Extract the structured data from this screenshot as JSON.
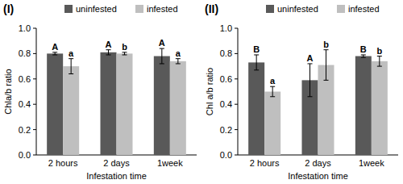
{
  "chart_data": [
    {
      "type": "bar",
      "title": "(I)",
      "x_label": "Infestation time",
      "y_label": "Chla/b ratio",
      "categories": [
        "2 hours",
        "2 days",
        "1week"
      ],
      "series": [
        {
          "name": "uninfested",
          "color": "#595959",
          "values": [
            0.8,
            0.81,
            0.78
          ],
          "errors": [
            0.01,
            0.02,
            0.06
          ],
          "letters": [
            "A",
            "A",
            "A"
          ]
        },
        {
          "name": "infested",
          "color": "#bfbfbf",
          "values": [
            0.7,
            0.8,
            0.74
          ],
          "errors": [
            0.06,
            0.01,
            0.02
          ],
          "letters": [
            "a",
            "b",
            "a"
          ]
        }
      ],
      "ylim": [
        0,
        1
      ],
      "yticks": [
        {
          "value": 0,
          "label": "0.0"
        },
        {
          "value": 0.2,
          "label": "0.2"
        },
        {
          "value": 0.4,
          "label": "0.4"
        },
        {
          "value": 0.6,
          "label": "0.6"
        },
        {
          "value": 0.8,
          "label": "0.8"
        },
        {
          "value": 1,
          "label": "1.0"
        }
      ],
      "legend": "top",
      "grid": false
    },
    {
      "type": "bar",
      "title": "(II)",
      "x_label": "Infestation time",
      "y_label": "Chl a/b ratio",
      "categories": [
        "2 hours",
        "2 days",
        "1week"
      ],
      "series": [
        {
          "name": "uninfested",
          "color": "#595959",
          "values": [
            0.73,
            0.59,
            0.78
          ],
          "errors": [
            0.06,
            0.13,
            0.01
          ],
          "letters": [
            "B",
            "A",
            "B"
          ]
        },
        {
          "name": "infested",
          "color": "#bfbfbf",
          "values": [
            0.5,
            0.71,
            0.74
          ],
          "errors": [
            0.04,
            0.12,
            0.04
          ],
          "letters": [
            "a",
            "b",
            "b"
          ]
        }
      ],
      "ylim": [
        0,
        1
      ],
      "yticks": [
        {
          "value": 0,
          "label": "0.0"
        },
        {
          "value": 0.2,
          "label": "0.2"
        },
        {
          "value": 0.4,
          "label": "0.4"
        },
        {
          "value": 0.6,
          "label": "0.6"
        },
        {
          "value": 0.8,
          "label": "0.8"
        },
        {
          "value": 1,
          "label": "1.0"
        }
      ],
      "legend": "top",
      "grid": false
    }
  ]
}
